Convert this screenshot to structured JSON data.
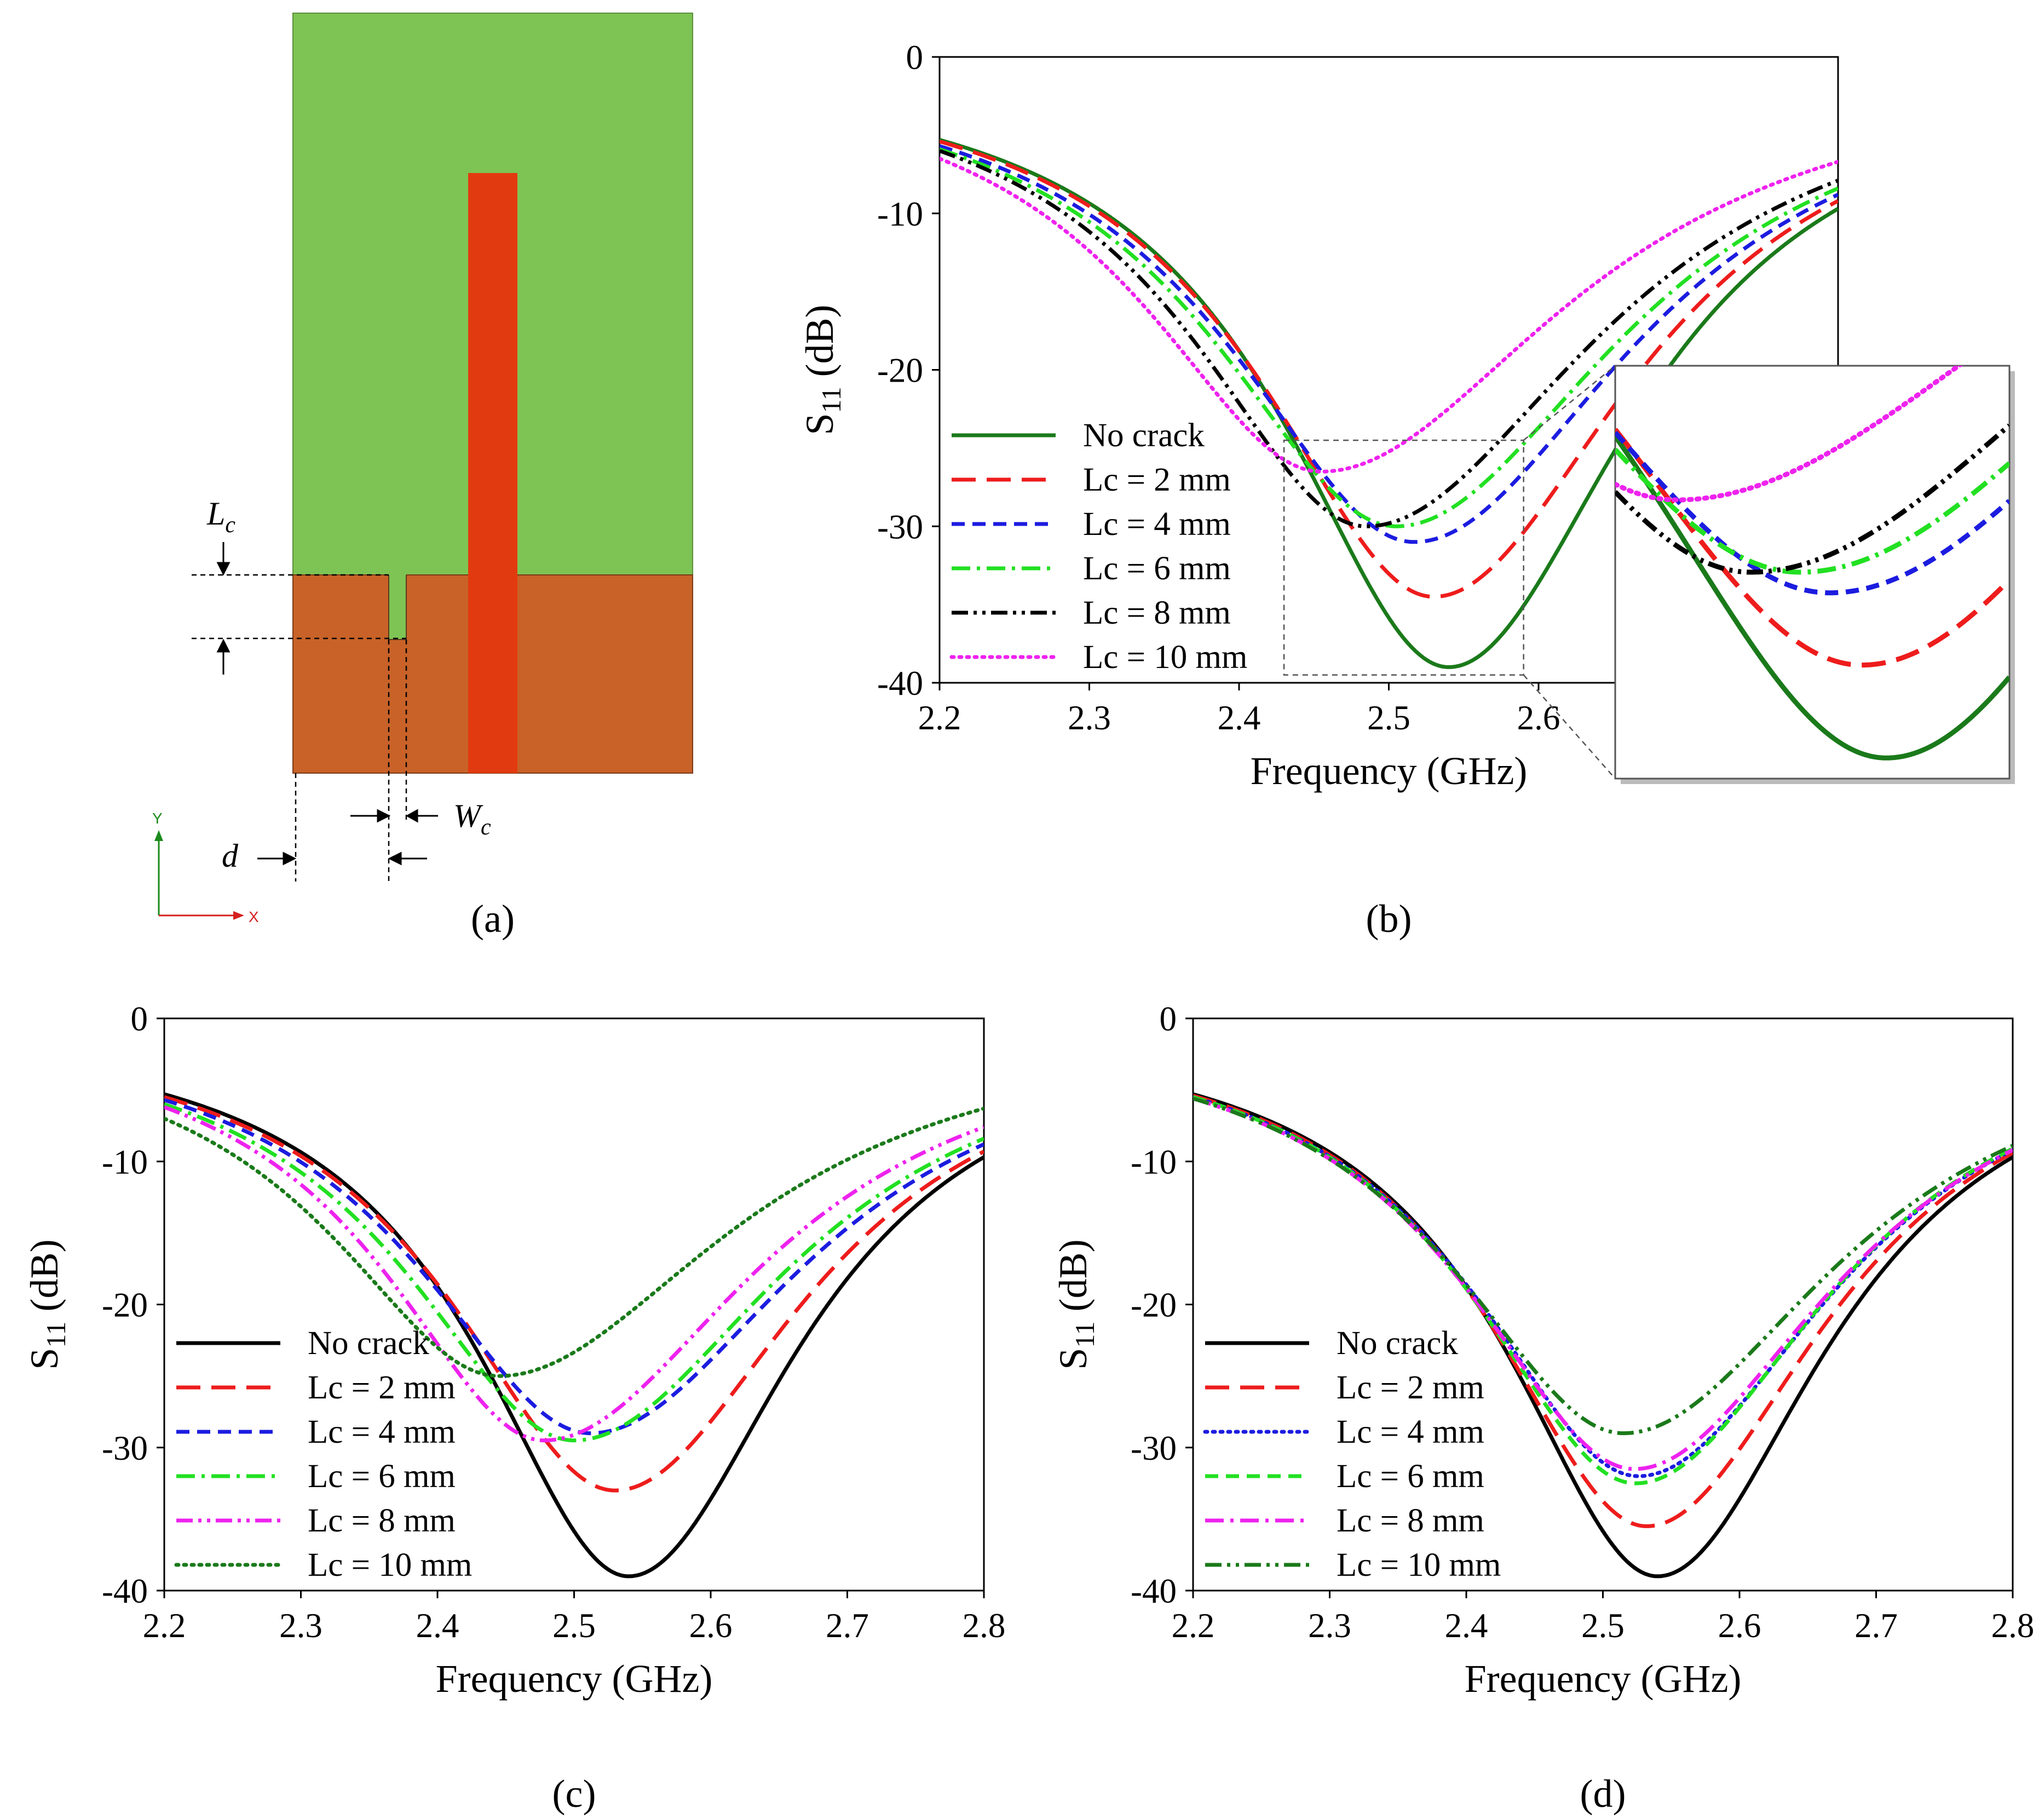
{
  "panels": {
    "a": {
      "label": "(a)",
      "dims": {
        "lc": "L",
        "lc_sub": "c",
        "wc": "W",
        "wc_sub": "c",
        "d": "d"
      },
      "axes": {
        "y": "Y",
        "x": "X"
      },
      "colors": {
        "patch": "#7ec454",
        "ground": "#c86228",
        "feed": "#e23a10"
      }
    }
  },
  "chart_data": [
    {
      "id": "b",
      "type": "line",
      "panel_label": "(b)",
      "xlabel": "Frequency (GHz)",
      "ylabel_main": "S",
      "ylabel_sub": "11",
      "ylabel_unit": " (dB)",
      "xlim": [
        2.2,
        2.8
      ],
      "ylim": [
        -40,
        0
      ],
      "xticks": [
        2.2,
        2.3,
        2.4,
        2.5,
        2.6
      ],
      "xtick_labels": [
        "2.2",
        "2.3",
        "2.4",
        "2.5",
        "2.6"
      ],
      "yticks": [
        0,
        -10,
        -20,
        -30,
        -40
      ],
      "ytick_labels": [
        "0",
        "-10",
        "-20",
        "-30",
        "-40"
      ],
      "legend_position": "lower-left",
      "inset": {
        "xlim": [
          2.43,
          2.59
        ],
        "ylim": [
          -40,
          -20
        ]
      },
      "series": [
        {
          "name": "No crack",
          "color": "#1a7a1a",
          "style": "solid",
          "f0": 2.54,
          "min": -39,
          "y_start": -5.3,
          "y_end": -9.7
        },
        {
          "name": "Lc = 2 mm",
          "color": "#ee1c1c",
          "style": "dash",
          "f0": 2.53,
          "min": -34.5,
          "y_start": -5.4,
          "y_end": -9.2
        },
        {
          "name": "Lc = 4 mm",
          "color": "#1c1ce0",
          "style": "shortdash",
          "f0": 2.517,
          "min": -31,
          "y_start": -5.7,
          "y_end": -8.8
        },
        {
          "name": "Lc = 6 mm",
          "color": "#22e022",
          "style": "dashdot",
          "f0": 2.505,
          "min": -30,
          "y_start": -5.9,
          "y_end": -8.4
        },
        {
          "name": "Lc = 8 mm",
          "color": "#000000",
          "style": "dashdotdot",
          "f0": 2.485,
          "min": -30,
          "y_start": -6.0,
          "y_end": -7.9
        },
        {
          "name": "Lc = 10 mm",
          "color": "#ee22ee",
          "style": "dot",
          "f0": 2.455,
          "min": -26.5,
          "y_start": -6.5,
          "y_end": -6.7
        }
      ]
    },
    {
      "id": "c",
      "type": "line",
      "panel_label": "(c)",
      "xlabel": "Frequency (GHz)",
      "ylabel_main": "S",
      "ylabel_sub": "11",
      "ylabel_unit": " (dB)",
      "xlim": [
        2.2,
        2.8
      ],
      "ylim": [
        -40,
        0
      ],
      "xticks": [
        2.2,
        2.3,
        2.4,
        2.5,
        2.6,
        2.7,
        2.8
      ],
      "xtick_labels": [
        "2.2",
        "2.3",
        "2.4",
        "2.5",
        "2.6",
        "2.7",
        "2.8"
      ],
      "yticks": [
        0,
        -10,
        -20,
        -30,
        -40
      ],
      "ytick_labels": [
        "0",
        "-10",
        "-20",
        "-30",
        "-40"
      ],
      "legend_position": "lower-left",
      "series": [
        {
          "name": "No crack",
          "color": "#000000",
          "style": "solid",
          "f0": 2.54,
          "min": -39,
          "y_start": -5.3,
          "y_end": -9.7
        },
        {
          "name": "Lc = 2 mm",
          "color": "#ee1c1c",
          "style": "dash",
          "f0": 2.53,
          "min": -33,
          "y_start": -5.5,
          "y_end": -9.3
        },
        {
          "name": "Lc = 4 mm",
          "color": "#1c1ce0",
          "style": "shortdash",
          "f0": 2.512,
          "min": -29,
          "y_start": -5.7,
          "y_end": -8.8
        },
        {
          "name": "Lc = 6 mm",
          "color": "#22e022",
          "style": "dashdot",
          "f0": 2.5,
          "min": -29.5,
          "y_start": -6.0,
          "y_end": -8.4
        },
        {
          "name": "Lc = 8 mm",
          "color": "#ee22ee",
          "style": "dashdotdot",
          "f0": 2.478,
          "min": -29.5,
          "y_start": -6.2,
          "y_end": -7.6
        },
        {
          "name": "Lc = 10 mm",
          "color": "#1a7a1a",
          "style": "dot",
          "f0": 2.445,
          "min": -25,
          "y_start": -7.0,
          "y_end": -6.3
        }
      ]
    },
    {
      "id": "d",
      "type": "line",
      "panel_label": "(d)",
      "xlabel": "Frequency (GHz)",
      "ylabel_main": "S",
      "ylabel_sub": "11",
      "ylabel_unit": " (dB)",
      "xlim": [
        2.2,
        2.8
      ],
      "ylim": [
        -40,
        0
      ],
      "xticks": [
        2.2,
        2.3,
        2.4,
        2.5,
        2.6,
        2.7,
        2.8
      ],
      "xtick_labels": [
        "2.2",
        "2.3",
        "2.4",
        "2.5",
        "2.6",
        "2.7",
        "2.8"
      ],
      "yticks": [
        0,
        -10,
        -20,
        -30,
        -40
      ],
      "ytick_labels": [
        "0",
        "-10",
        "-20",
        "-30",
        "-40"
      ],
      "legend_position": "lower-left",
      "series": [
        {
          "name": "No crack",
          "color": "#000000",
          "style": "solid",
          "f0": 2.54,
          "min": -39,
          "y_start": -5.3,
          "y_end": -9.7
        },
        {
          "name": "Lc = 2 mm",
          "color": "#ee1c1c",
          "style": "dash",
          "f0": 2.532,
          "min": -35.5,
          "y_start": -5.4,
          "y_end": -9.4
        },
        {
          "name": "Lc = 4 mm",
          "color": "#1c1ce0",
          "style": "dot",
          "f0": 2.526,
          "min": -32,
          "y_start": -5.5,
          "y_end": -9.2
        },
        {
          "name": "Lc = 6 mm",
          "color": "#22e022",
          "style": "shortdash",
          "f0": 2.524,
          "min": -32.5,
          "y_start": -5.5,
          "y_end": -9.1
        },
        {
          "name": "Lc = 8 mm",
          "color": "#ee22ee",
          "style": "dashdot",
          "f0": 2.523,
          "min": -31.5,
          "y_start": -5.6,
          "y_end": -9.2
        },
        {
          "name": "Lc = 10 mm",
          "color": "#1a7a1a",
          "style": "dashdotdot",
          "f0": 2.515,
          "min": -29,
          "y_start": -5.6,
          "y_end": -8.9
        }
      ]
    }
  ]
}
